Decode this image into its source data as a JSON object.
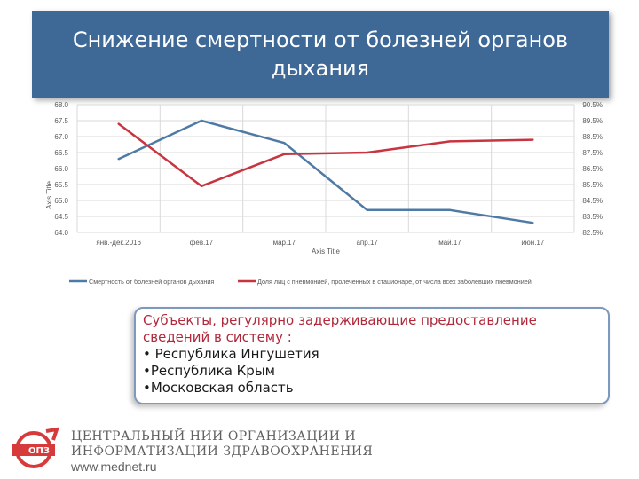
{
  "slide_title": "Снижение смертности от болезней органов дыхания",
  "chart_data": {
    "type": "line",
    "categories": [
      "янв.-дек.2016",
      "фев.17",
      "мар.17",
      "апр.17",
      "май.17",
      "июн.17"
    ],
    "xlabel": "Axis Title",
    "ylabel": "Axis Title",
    "ylim": [
      64.0,
      68.0
    ],
    "y_ticks": [
      "68.0",
      "67.5",
      "67.0",
      "66.5",
      "66.0",
      "65.5",
      "65.0",
      "64.5",
      "64.0"
    ],
    "y2lim": [
      82.5,
      90.5
    ],
    "y2_ticks": [
      "90.5%",
      "89.5%",
      "88.5%",
      "87.5%",
      "86.5%",
      "85.5%",
      "84.5%",
      "83.5%",
      "82.5%"
    ],
    "grid": true,
    "legend_position": "bottom",
    "series": [
      {
        "name": "Смертность от болезней органов дыхания",
        "axis": "left",
        "color": "#4f7aa6",
        "values": [
          66.3,
          67.5,
          66.8,
          64.7,
          64.7,
          64.3
        ]
      },
      {
        "name": "Доля лиц с пневмонией, пролеченных в стационаре, от числа всех заболевших пневмонией",
        "axis": "right",
        "color": "#c83540",
        "values": [
          89.3,
          85.4,
          87.4,
          87.5,
          88.2,
          88.3
        ]
      }
    ]
  },
  "subjects": {
    "title": "Субъекты, регулярно задерживающие предоставление сведений в систему :",
    "items": [
      "• Республика Ингушетия",
      "•Республика Крым",
      "•Московская область"
    ]
  },
  "footer": {
    "line1": "ЦЕНТРАЛЬНЫЙ НИИ ОРГАНИЗАЦИИ И",
    "line2": "ИНФОРМАТИЗАЦИИ ЗДРАВООХРАНЕНИЯ",
    "url": "www.mednet.ru",
    "logo_text": "ОПЗ",
    "logo_color": "#d63a3a"
  }
}
